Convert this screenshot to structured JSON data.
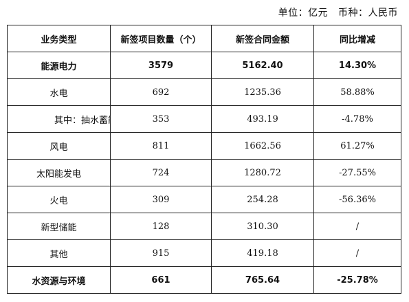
{
  "unit_line": "单位：亿元   币种：人民币",
  "table": {
    "headers": [
      "业务类型",
      "新签项目数量（个）",
      "新签合同金额",
      "同比增减"
    ],
    "rows": [
      {
        "type": "能源电力",
        "count": "3579",
        "amount": "5162.40",
        "change": "14.30%",
        "bold": true
      },
      {
        "type": "水电",
        "count": "692",
        "amount": "1235.36",
        "change": "58.88%",
        "bold": false
      },
      {
        "type": "其中：抽水蓄能",
        "count": "353",
        "amount": "493.19",
        "change": "-4.78%",
        "bold": false
      },
      {
        "type": "风电",
        "count": "811",
        "amount": "1662.56",
        "change": "61.27%",
        "bold": false
      },
      {
        "type": "太阳能发电",
        "count": "724",
        "amount": "1280.72",
        "change": "-27.55%",
        "bold": false
      },
      {
        "type": "火电",
        "count": "309",
        "amount": "254.28",
        "change": "-56.36%",
        "bold": false
      },
      {
        "type": "新型储能",
        "count": "128",
        "amount": "310.30",
        "change": "/",
        "bold": false
      },
      {
        "type": "其他",
        "count": "915",
        "amount": "419.18",
        "change": "/",
        "bold": false
      },
      {
        "type": "水资源与环境",
        "count": "661",
        "amount": "765.64",
        "change": "-25.78%",
        "bold": true
      }
    ]
  }
}
